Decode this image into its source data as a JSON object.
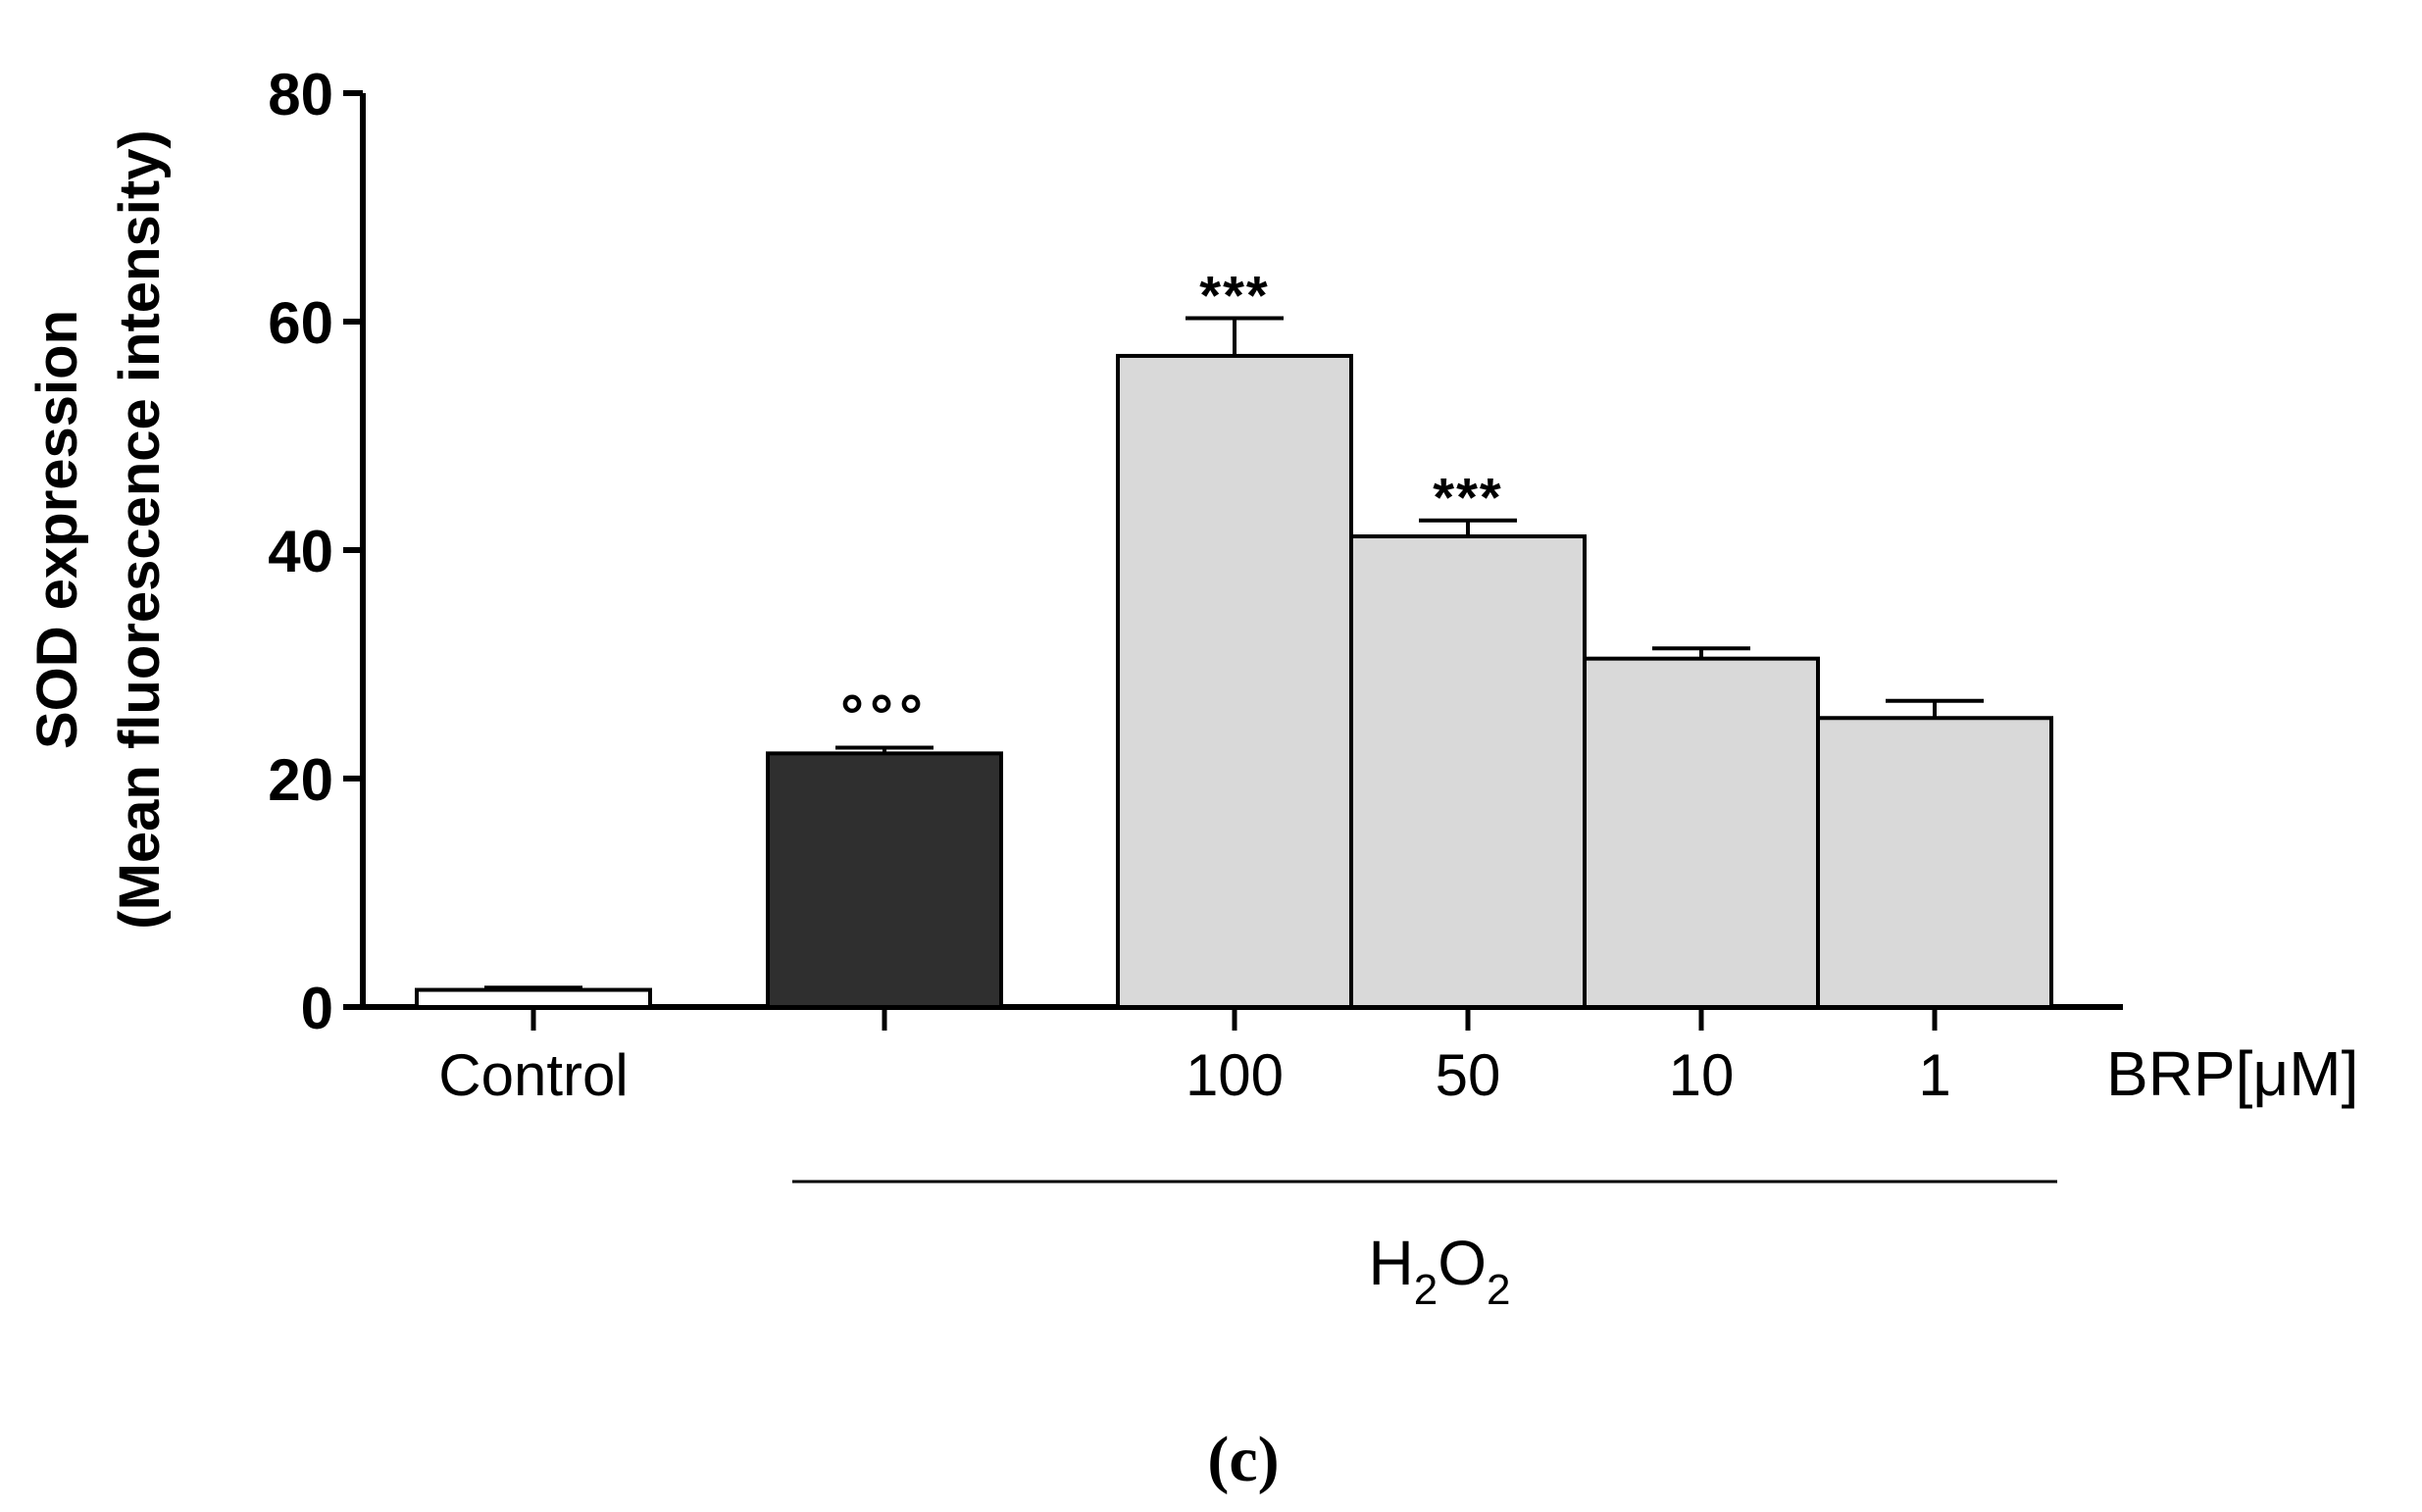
{
  "chart_data": {
    "type": "bar",
    "ylabel_line1": "SOD expression",
    "ylabel_line2": "(Mean fluorescence intensity)",
    "ylim": [
      0,
      80
    ],
    "yticks": [
      "0",
      "20",
      "40",
      "60",
      "80"
    ],
    "ytick_values": [
      0,
      20,
      40,
      60,
      80
    ],
    "categories": [
      "Control",
      "",
      "100",
      "50",
      "10",
      "1"
    ],
    "values": [
      1.5,
      22.2,
      57.0,
      41.2,
      30.5,
      25.3
    ],
    "errors": [
      0.2,
      0.5,
      3.3,
      1.4,
      0.9,
      1.5
    ],
    "annotations": [
      "",
      "°°°",
      "***",
      "***",
      "",
      ""
    ],
    "bar_colors": [
      "#ffffff",
      "#2f2f2f",
      "#d9d9d9",
      "#d9d9d9",
      "#d9d9d9",
      "#d9d9d9"
    ],
    "dose_axis_label": "BRP[μM]",
    "group_label": {
      "base1": "H",
      "sub1": "2",
      "base2": "O",
      "sub2": "2"
    },
    "panel_label": "(c)"
  }
}
